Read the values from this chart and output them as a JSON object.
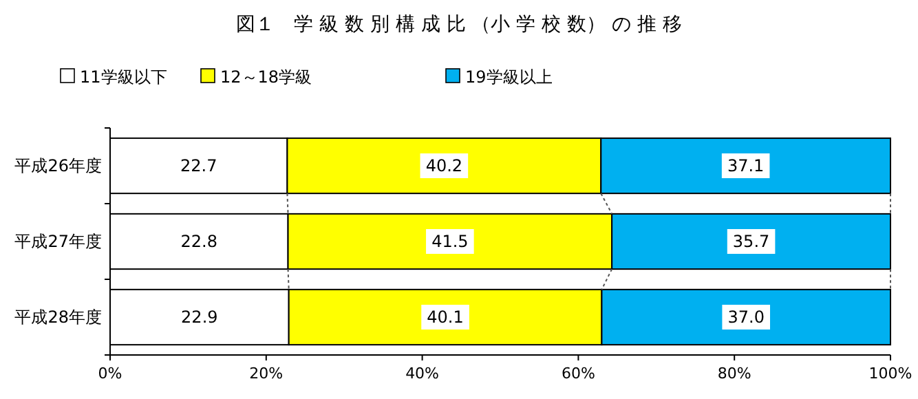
{
  "chart_data": {
    "type": "bar",
    "orientation": "horizontal",
    "stacked": true,
    "title": "図１　学 級 数 別 構 成 比 （小 学 校 数） の 推 移",
    "categories": [
      "平成26年度",
      "平成27年度",
      "平成28年度"
    ],
    "series": [
      {
        "name": "11学級以下",
        "color": "#ffffff",
        "values": [
          22.7,
          22.8,
          22.9
        ],
        "value_labels": [
          "22.7",
          "22.8",
          "22.9"
        ]
      },
      {
        "name": "12～18学級",
        "color": "#ffff00",
        "values": [
          40.2,
          41.5,
          40.1
        ],
        "value_labels": [
          "40.2",
          "41.5",
          "40.1"
        ]
      },
      {
        "name": "19学級以上",
        "color": "#00b0f0",
        "values": [
          37.1,
          35.7,
          37.0
        ],
        "value_labels": [
          "37.1",
          "35.7",
          "37.0"
        ]
      }
    ],
    "xlim": [
      0,
      100
    ],
    "xticks": [
      {
        "value": 0,
        "label": "0%"
      },
      {
        "value": 20,
        "label": "20%"
      },
      {
        "value": 40,
        "label": "40%"
      },
      {
        "value": 60,
        "label": "60%"
      },
      {
        "value": 80,
        "label": "80%"
      },
      {
        "value": 100,
        "label": "100%"
      }
    ],
    "legend": "top",
    "grid": false
  }
}
